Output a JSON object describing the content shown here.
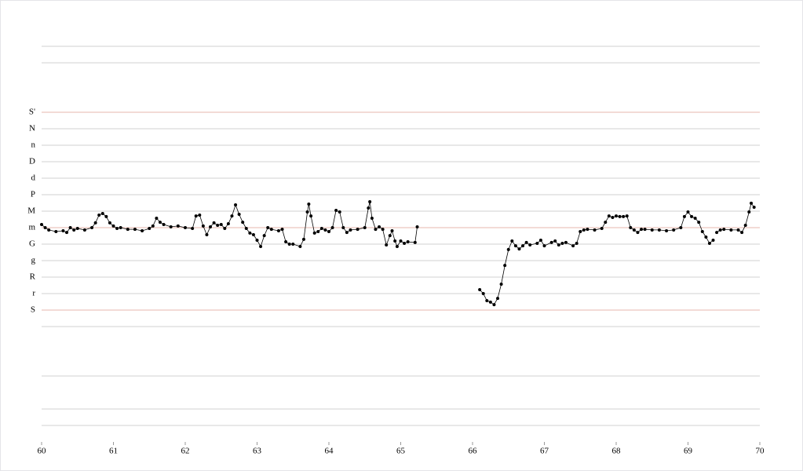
{
  "chart_data": {
    "type": "scatter",
    "xlim": [
      60,
      70
    ],
    "xticks": [
      60,
      61,
      62,
      63,
      64,
      65,
      66,
      67,
      68,
      69,
      70
    ],
    "ylim": [
      -8,
      17
    ],
    "yticks": [
      {
        "value": 12,
        "label": "S'"
      },
      {
        "value": 11,
        "label": "N"
      },
      {
        "value": 10,
        "label": "n"
      },
      {
        "value": 9,
        "label": "D"
      },
      {
        "value": 8,
        "label": "d"
      },
      {
        "value": 7,
        "label": "P"
      },
      {
        "value": 6,
        "label": "M"
      },
      {
        "value": 5,
        "label": "m"
      },
      {
        "value": 4,
        "label": "G"
      },
      {
        "value": 3,
        "label": "g"
      },
      {
        "value": 2,
        "label": "R"
      },
      {
        "value": 1,
        "label": "r"
      },
      {
        "value": 0,
        "label": "S"
      }
    ],
    "minor_gridlines": [
      16,
      15,
      -1,
      -4,
      -6,
      -7
    ],
    "highlight_lines": [
      0,
      5,
      12
    ],
    "highlight_color": "#e7b7ad",
    "grid_color": "#d0d0d0",
    "grid": true,
    "series": [
      {
        "color": "#000000",
        "x": [
          60,
          60.05,
          60.1,
          60.2,
          60.3,
          60.35,
          60.4,
          60.45,
          60.5,
          60.6,
          60.7,
          60.75,
          60.8,
          60.85,
          60.9,
          60.95,
          61,
          61.05,
          61.1,
          61.2,
          61.3,
          61.4,
          61.5,
          61.55,
          61.6,
          61.65,
          61.7,
          61.8,
          61.9,
          62,
          62.1,
          62.15,
          62.2,
          62.25,
          62.3,
          62.35,
          62.4,
          62.45,
          62.5,
          62.55,
          62.6,
          62.65,
          62.7,
          62.75,
          62.8,
          62.85,
          62.9,
          62.95,
          63,
          63.05,
          63.1,
          63.15,
          63.2,
          63.3,
          63.35,
          63.4,
          63.45,
          63.5,
          63.6,
          63.65,
          63.7,
          63.72,
          63.75,
          63.8,
          63.85,
          63.9,
          63.95,
          64,
          64.05,
          64.1,
          64.15,
          64.2,
          64.25,
          64.3,
          64.4,
          64.5,
          64.55,
          64.57,
          64.6,
          64.65,
          64.7,
          64.75,
          64.8,
          64.85,
          64.88,
          64.92,
          64.95,
          65,
          65.05,
          65.1,
          65.2,
          65.23,
          65.6,
          66.1,
          66.15,
          66.2,
          66.25,
          66.3,
          66.35,
          66.4,
          66.45,
          66.5,
          66.55,
          66.6,
          66.65,
          66.7,
          66.75,
          66.8,
          66.9,
          66.95,
          67,
          67.1,
          67.15,
          67.2,
          67.25,
          67.3,
          67.4,
          67.45,
          67.5,
          67.55,
          67.6,
          67.7,
          67.8,
          67.85,
          67.9,
          67.95,
          68,
          68.05,
          68.1,
          68.15,
          68.2,
          68.25,
          68.3,
          68.35,
          68.4,
          68.5,
          68.6,
          68.7,
          68.8,
          68.9,
          68.95,
          69,
          69.05,
          69.1,
          69.15,
          69.2,
          69.25,
          69.3,
          69.35,
          69.38,
          69.4,
          69.45,
          69.5,
          69.6,
          69.7,
          69.75,
          69.8,
          69.85,
          69.88,
          69.92
        ],
        "values": [
          5.19,
          5,
          4.86,
          4.76,
          4.81,
          4.71,
          5,
          4.86,
          4.95,
          4.86,
          5,
          5.29,
          5.76,
          5.86,
          5.67,
          5.29,
          5.1,
          4.95,
          5,
          4.9,
          4.9,
          4.81,
          4.95,
          5.1,
          5.57,
          5.33,
          5.19,
          5.05,
          5.1,
          5,
          4.95,
          5.71,
          5.76,
          5.1,
          4.57,
          5.05,
          5.29,
          5.14,
          5.19,
          4.95,
          5.24,
          5.71,
          6.38,
          5.81,
          5.33,
          4.95,
          4.67,
          4.57,
          4.24,
          3.86,
          4.52,
          5,
          4.9,
          4.81,
          4.9,
          4.14,
          4,
          4,
          3.86,
          4.29,
          5.95,
          6.43,
          5.71,
          4.67,
          4.76,
          4.95,
          4.86,
          4.76,
          5,
          6.05,
          5.95,
          5,
          4.71,
          4.86,
          4.9,
          5,
          6.19,
          6.57,
          5.57,
          4.9,
          5.05,
          4.9,
          3.95,
          4.52,
          4.81,
          4.19,
          3.86,
          4.19,
          4.05,
          4.14,
          4.1,
          5.05,
          null,
          1.24,
          1,
          0.57,
          0.48,
          0.33,
          0.71,
          1.57,
          2.71,
          3.67,
          4.19,
          3.9,
          3.71,
          3.9,
          4.1,
          3.95,
          4.05,
          4.24,
          3.9,
          4.1,
          4.19,
          3.95,
          4.05,
          4.1,
          3.9,
          4.05,
          4.76,
          4.86,
          4.9,
          4.86,
          4.95,
          5.33,
          5.71,
          5.62,
          5.71,
          5.67,
          5.67,
          5.71,
          5,
          4.86,
          4.71,
          4.9,
          4.9,
          4.86,
          4.86,
          4.81,
          4.86,
          5,
          5.67,
          5.95,
          5.67,
          5.57,
          5.33,
          4.76,
          4.43,
          4.05,
          4.24,
          null,
          4.71,
          4.86,
          4.9,
          4.86,
          4.86,
          4.71,
          5.14,
          5.95,
          6.48,
          6.24
        ]
      }
    ]
  }
}
